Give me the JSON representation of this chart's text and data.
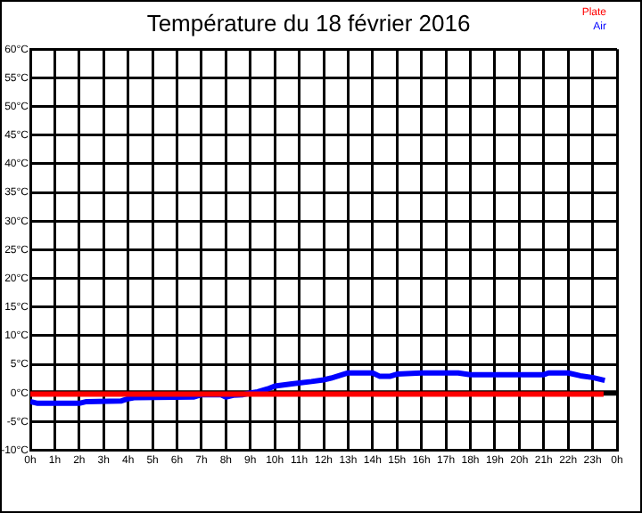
{
  "chart_data": {
    "type": "line",
    "title": "Température du 18 février 2016",
    "xlim": [
      "2016-02-18T00:00",
      "2016-02-19T00:00"
    ],
    "xticks": [
      {
        "value": "2016-02-18T00:00",
        "label": "0h"
      },
      {
        "value": "2016-02-18T01:00",
        "label": "1h"
      },
      {
        "value": "2016-02-18T02:00",
        "label": "2h"
      },
      {
        "value": "2016-02-18T03:00",
        "label": "3h"
      },
      {
        "value": "2016-02-18T04:00",
        "label": "4h"
      },
      {
        "value": "2016-02-18T05:00",
        "label": "5h"
      },
      {
        "value": "2016-02-18T06:00",
        "label": "6h"
      },
      {
        "value": "2016-02-18T07:00",
        "label": "7h"
      },
      {
        "value": "2016-02-18T08:00",
        "label": "8h"
      },
      {
        "value": "2016-02-18T09:00",
        "label": "9h"
      },
      {
        "value": "2016-02-18T10:00",
        "label": "10h"
      },
      {
        "value": "2016-02-18T11:00",
        "label": "11h"
      },
      {
        "value": "2016-02-18T12:00",
        "label": "12h"
      },
      {
        "value": "2016-02-18T13:00",
        "label": "13h"
      },
      {
        "value": "2016-02-18T14:00",
        "label": "14h"
      },
      {
        "value": "2016-02-18T15:00",
        "label": "15h"
      },
      {
        "value": "2016-02-18T16:00",
        "label": "16h"
      },
      {
        "value": "2016-02-18T17:00",
        "label": "17h"
      },
      {
        "value": "2016-02-18T18:00",
        "label": "18h"
      },
      {
        "value": "2016-02-18T19:00",
        "label": "19h"
      },
      {
        "value": "2016-02-18T20:00",
        "label": "20h"
      },
      {
        "value": "2016-02-18T21:00",
        "label": "21h"
      },
      {
        "value": "2016-02-18T22:00",
        "label": "22h"
      },
      {
        "value": "2016-02-18T23:00",
        "label": "23h"
      },
      {
        "value": "2016-02-19T00:00",
        "label": "0h"
      }
    ],
    "ylim": [
      -10,
      60
    ],
    "yticks": [
      {
        "value": -10,
        "label": "-10°C"
      },
      {
        "value": -5,
        "label": "-5°C"
      },
      {
        "value": 0,
        "label": "0°C"
      },
      {
        "value": 5,
        "label": "5°C"
      },
      {
        "value": 10,
        "label": "10°C"
      },
      {
        "value": 15,
        "label": "15°C"
      },
      {
        "value": 20,
        "label": "20°C"
      },
      {
        "value": 25,
        "label": "25°C"
      },
      {
        "value": 30,
        "label": "30°C"
      },
      {
        "value": 35,
        "label": "35°C"
      },
      {
        "value": 40,
        "label": "40°C"
      },
      {
        "value": 45,
        "label": "45°C"
      },
      {
        "value": 50,
        "label": "50°C"
      },
      {
        "value": 55,
        "label": "55°C"
      },
      {
        "value": 60,
        "label": "60°C"
      }
    ],
    "grid": true,
    "legend": "top right",
    "marker": "none",
    "line_style": "solid",
    "ref_lines": [
      {
        "axis": "y",
        "value": 0,
        "color": "#000000"
      }
    ],
    "series": [
      {
        "name": "Plate",
        "color": "#ff0000",
        "x": [
          "2016-02-18T00:00",
          "2016-02-18T23:27"
        ],
        "values": [
          -0.2,
          -0.2
        ]
      },
      {
        "name": "Air",
        "color": "#0000ff",
        "x": [
          "2016-02-18T00:00",
          "2016-02-18T00:18",
          "2016-02-18T02:00",
          "2016-02-18T02:18",
          "2016-02-18T03:42",
          "2016-02-18T04:00",
          "2016-02-18T04:18",
          "2016-02-18T06:42",
          "2016-02-18T07:00",
          "2016-02-18T07:48",
          "2016-02-18T08:00",
          "2016-02-18T08:18",
          "2016-02-18T08:42",
          "2016-02-18T09:00",
          "2016-02-18T09:18",
          "2016-02-18T09:42",
          "2016-02-18T10:00",
          "2016-02-18T10:42",
          "2016-02-18T11:30",
          "2016-02-18T12:00",
          "2016-02-18T12:18",
          "2016-02-18T13:00",
          "2016-02-18T14:00",
          "2016-02-18T14:18",
          "2016-02-18T14:42",
          "2016-02-18T15:00",
          "2016-02-18T16:00",
          "2016-02-18T17:30",
          "2016-02-18T18:00",
          "2016-02-18T21:00",
          "2016-02-18T21:12",
          "2016-02-18T22:00",
          "2016-02-18T22:30",
          "2016-02-18T23:00",
          "2016-02-18T23:30"
        ],
        "values": [
          -1.5,
          -1.8,
          -1.8,
          -1.5,
          -1.4,
          -1,
          -0.8,
          -0.7,
          -0.3,
          -0.3,
          -0.7,
          -0.4,
          -0.3,
          0,
          0.2,
          0.7,
          1.2,
          1.6,
          2,
          2.3,
          2.6,
          3.5,
          3.5,
          2.9,
          2.9,
          3.3,
          3.5,
          3.5,
          3.2,
          3.2,
          3.5,
          3.5,
          3,
          2.7,
          2.2
        ]
      }
    ]
  }
}
